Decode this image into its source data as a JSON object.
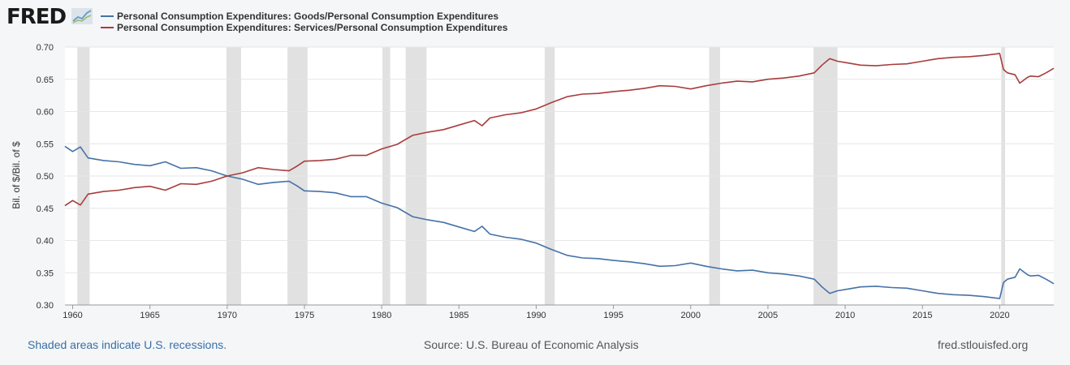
{
  "header": {
    "logo_text": "FRED",
    "logo_icon": "trend-chart-icon"
  },
  "footer": {
    "recessions_note": "Shaded areas indicate U.S. recessions.",
    "source": "Source: U.S. Bureau of Economic Analysis",
    "site": "fred.stlouisfed.org"
  },
  "chart_data": {
    "type": "line",
    "title": "",
    "xlabel": "",
    "ylabel": "Bil. of $/Bil. of $",
    "xlim": [
      1959.5,
      2023.5
    ],
    "ylim": [
      0.3,
      0.7
    ],
    "yticks": [
      0.3,
      0.35,
      0.4,
      0.45,
      0.5,
      0.55,
      0.6,
      0.65,
      0.7
    ],
    "ytick_labels": [
      "0.30",
      "0.35",
      "0.40",
      "0.45",
      "0.50",
      "0.55",
      "0.60",
      "0.65",
      "0.70"
    ],
    "xticks": [
      1960,
      1965,
      1970,
      1975,
      1980,
      1985,
      1990,
      1995,
      2000,
      2005,
      2010,
      2015,
      2020
    ],
    "xtick_labels": [
      "1960",
      "1965",
      "1970",
      "1975",
      "1980",
      "1985",
      "1990",
      "1995",
      "2000",
      "2005",
      "2010",
      "2015",
      "2020"
    ],
    "grid": "horizontal",
    "legend_position": "top",
    "recessions": [
      [
        1960.3,
        1961.1
      ],
      [
        1969.95,
        1970.9
      ],
      [
        1973.9,
        1975.2
      ],
      [
        1980.05,
        1980.55
      ],
      [
        1981.55,
        1982.9
      ],
      [
        1990.55,
        1991.2
      ],
      [
        2001.2,
        2001.9
      ],
      [
        2007.95,
        2009.5
      ],
      [
        2020.1,
        2020.35
      ]
    ],
    "series": [
      {
        "name": "Personal Consumption Expenditures: Goods/Personal Consumption Expenditures",
        "color": "#4572a7",
        "x": [
          1959.5,
          1960,
          1960.5,
          1961,
          1962,
          1963,
          1964,
          1965,
          1966,
          1967,
          1968,
          1969,
          1970,
          1971,
          1972,
          1973,
          1974,
          1974.5,
          1975,
          1976,
          1977,
          1978,
          1979,
          1980,
          1981,
          1982,
          1983,
          1984,
          1985,
          1986,
          1986.5,
          1987,
          1988,
          1989,
          1990,
          1991,
          1992,
          1993,
          1994,
          1995,
          1996,
          1997,
          1998,
          1999,
          2000,
          2001,
          2002,
          2003,
          2004,
          2005,
          2006,
          2007,
          2008,
          2008.5,
          2009,
          2009.5,
          2010,
          2011,
          2012,
          2013,
          2014,
          2015,
          2016,
          2017,
          2018,
          2019,
          2020,
          2020.25,
          2020.5,
          2021,
          2021.3,
          2021.8,
          2022,
          2022.5,
          2023,
          2023.5
        ],
        "values": [
          0.546,
          0.538,
          0.545,
          0.528,
          0.524,
          0.522,
          0.518,
          0.516,
          0.522,
          0.512,
          0.513,
          0.508,
          0.5,
          0.495,
          0.487,
          0.49,
          0.492,
          0.485,
          0.477,
          0.476,
          0.474,
          0.468,
          0.468,
          0.458,
          0.451,
          0.437,
          0.432,
          0.428,
          0.421,
          0.414,
          0.422,
          0.41,
          0.405,
          0.402,
          0.396,
          0.386,
          0.377,
          0.373,
          0.372,
          0.369,
          0.367,
          0.364,
          0.36,
          0.361,
          0.365,
          0.36,
          0.356,
          0.353,
          0.354,
          0.35,
          0.348,
          0.345,
          0.34,
          0.328,
          0.318,
          0.322,
          0.324,
          0.328,
          0.329,
          0.327,
          0.326,
          0.322,
          0.318,
          0.316,
          0.315,
          0.313,
          0.31,
          0.335,
          0.34,
          0.343,
          0.356,
          0.347,
          0.345,
          0.346,
          0.34,
          0.333
        ]
      },
      {
        "name": "Personal Consumption Expenditures: Services/Personal Consumption Expenditures",
        "color": "#a83c3c",
        "x": [
          1959.5,
          1960,
          1960.5,
          1961,
          1962,
          1963,
          1964,
          1965,
          1966,
          1967,
          1968,
          1969,
          1970,
          1971,
          1972,
          1973,
          1974,
          1974.5,
          1975,
          1976,
          1977,
          1978,
          1979,
          1980,
          1981,
          1982,
          1983,
          1984,
          1985,
          1986,
          1986.5,
          1987,
          1988,
          1989,
          1990,
          1991,
          1992,
          1993,
          1994,
          1995,
          1996,
          1997,
          1998,
          1999,
          2000,
          2001,
          2002,
          2003,
          2004,
          2005,
          2006,
          2007,
          2008,
          2008.5,
          2009,
          2009.5,
          2010,
          2011,
          2012,
          2013,
          2014,
          2015,
          2016,
          2017,
          2018,
          2019,
          2020,
          2020.25,
          2020.5,
          2021,
          2021.3,
          2021.8,
          2022,
          2022.5,
          2023,
          2023.5
        ],
        "values": [
          0.454,
          0.462,
          0.455,
          0.472,
          0.476,
          0.478,
          0.482,
          0.484,
          0.478,
          0.488,
          0.487,
          0.492,
          0.5,
          0.505,
          0.513,
          0.51,
          0.508,
          0.515,
          0.523,
          0.524,
          0.526,
          0.532,
          0.532,
          0.542,
          0.549,
          0.563,
          0.568,
          0.572,
          0.579,
          0.586,
          0.578,
          0.59,
          0.595,
          0.598,
          0.604,
          0.614,
          0.623,
          0.627,
          0.628,
          0.631,
          0.633,
          0.636,
          0.64,
          0.639,
          0.635,
          0.64,
          0.644,
          0.647,
          0.646,
          0.65,
          0.652,
          0.655,
          0.66,
          0.672,
          0.682,
          0.678,
          0.676,
          0.672,
          0.671,
          0.673,
          0.674,
          0.678,
          0.682,
          0.684,
          0.685,
          0.687,
          0.69,
          0.665,
          0.66,
          0.657,
          0.644,
          0.653,
          0.655,
          0.654,
          0.66,
          0.667
        ]
      }
    ]
  }
}
